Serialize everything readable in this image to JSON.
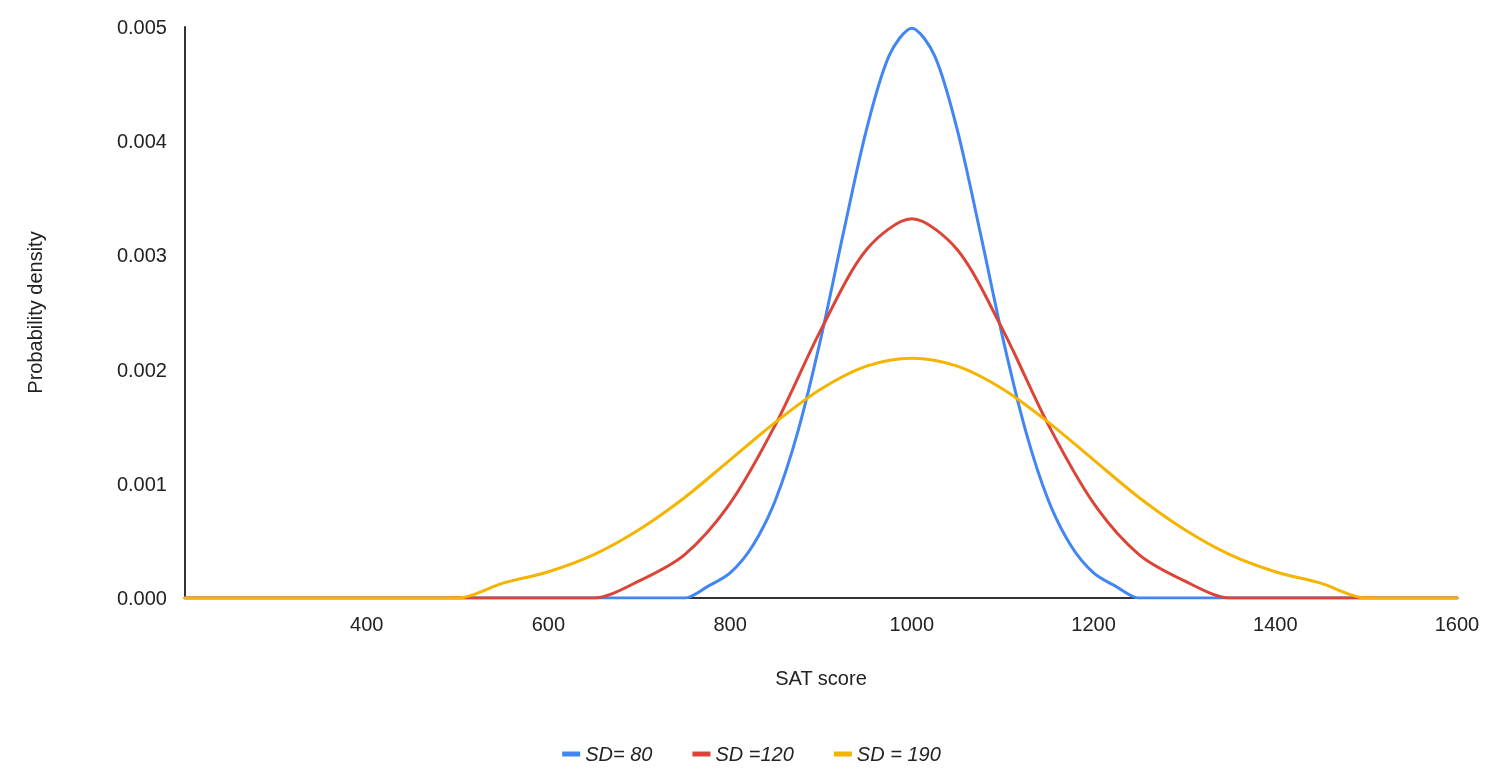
{
  "chart_data": {
    "type": "line",
    "xlabel": "SAT score",
    "ylabel": "Probability density",
    "xlim": [
      200,
      1600
    ],
    "xticks": [
      400,
      600,
      800,
      1000,
      1200,
      1400,
      1600
    ],
    "ylim": [
      0,
      0.005
    ],
    "yticks": [
      {
        "value": 0,
        "label": "0.000"
      },
      0.001,
      0.002,
      0.003,
      0.004,
      0.005
    ],
    "grid": false,
    "legend": "bottom",
    "marker": "none",
    "line_style": "solid",
    "series": [
      {
        "name": "SD= 80",
        "color": "#4285f4",
        "x": [
          200,
          600,
          700,
          750,
          775,
          800,
          825,
          850,
          875,
          900,
          925,
          950,
          975,
          1000,
          1025,
          1050,
          1075,
          1100,
          1125,
          1150,
          1175,
          1200,
          1225,
          1250,
          1300,
          1400,
          1600
        ],
        "values": [
          0,
          0,
          0,
          0,
          0.0001,
          0.00022,
          0.00046,
          0.00086,
          0.00147,
          0.00228,
          0.00321,
          0.0041,
          0.00475,
          0.00499,
          0.00475,
          0.0041,
          0.00321,
          0.00228,
          0.00147,
          0.00086,
          0.00046,
          0.00022,
          0.0001,
          0,
          0,
          0,
          0
        ]
      },
      {
        "name": "SD =120",
        "color": "#db4437",
        "x": [
          200,
          250,
          300,
          350,
          400,
          450,
          500,
          550,
          600,
          650,
          700,
          750,
          800,
          850,
          900,
          950,
          1000,
          1050,
          1100,
          1150,
          1200,
          1250,
          1300,
          1350,
          1400,
          1450,
          1500,
          1550,
          1600
        ],
        "values": [
          0,
          0,
          0,
          0,
          0,
          0,
          0,
          0,
          0,
          0,
          0.00015,
          0.00038,
          0.00083,
          0.00152,
          0.00235,
          0.00305,
          0.00332,
          0.00305,
          0.00235,
          0.00152,
          0.00083,
          0.00038,
          0.00015,
          0,
          0,
          0,
          0,
          0,
          0
        ]
      },
      {
        "name": "SD = 190",
        "color": "#f4b400",
        "x": [
          200,
          250,
          300,
          350,
          400,
          450,
          500,
          550,
          600,
          650,
          700,
          750,
          800,
          850,
          900,
          950,
          1000,
          1050,
          1100,
          1150,
          1200,
          1250,
          1300,
          1350,
          1400,
          1450,
          1500,
          1550,
          1600
        ],
        "values": [
          0,
          0,
          0,
          0,
          0,
          0,
          0,
          0.00013,
          0.00023,
          0.00038,
          0.0006,
          0.00088,
          0.00121,
          0.00154,
          0.00183,
          0.00203,
          0.0021,
          0.00203,
          0.00183,
          0.00154,
          0.00121,
          0.00088,
          0.0006,
          0.00038,
          0.00023,
          0.00013,
          0,
          0,
          0
        ]
      }
    ]
  }
}
